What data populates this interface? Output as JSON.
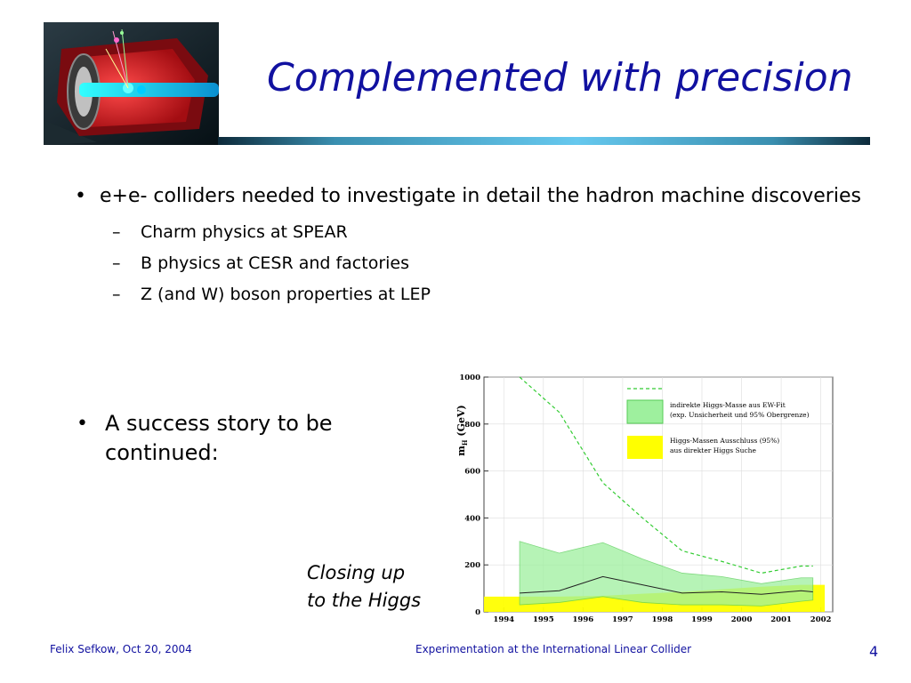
{
  "title": "Complemented with precision",
  "bullets": {
    "main": "e+e- colliders needed to investigate in detail the hadron machine discoveries",
    "sub": [
      "Charm physics at SPEAR",
      "B physics at CESR and factories",
      "Z (and W) boson properties at LEP"
    ],
    "second": "A success story to be continued:"
  },
  "caption_line1": "Closing up",
  "caption_line2": "to the Higgs",
  "footer": {
    "author": "Felix Sefkow, Oct 20, 2004",
    "event": "Experimentation at the International Linear Collider",
    "page": "4"
  },
  "chart_data": {
    "type": "area",
    "ylabel": "m",
    "ylabel_sub": "H",
    "ylabel_unit": "(GeV)",
    "ylim": [
      0,
      1000
    ],
    "yticks": [
      0,
      200,
      400,
      600,
      800,
      1000
    ],
    "x": [
      "1994",
      "1995",
      "1996",
      "1997",
      "1998",
      "1999",
      "2000",
      "2001",
      "2002"
    ],
    "xlim": [
      1993.5,
      2002.3
    ],
    "legend": [
      {
        "line1": "indirekte Higgs-Masse aus EW-Fit",
        "line2": "(exp. Unsicherheit und 95% Obergrenze)",
        "color": "#9ef09e"
      },
      {
        "line1": "Higgs-Massen Ausschluss (95%)",
        "line2": "aus direkter Higgs Suche",
        "color": "#ffff00"
      }
    ],
    "series": [
      {
        "role": "band_upper",
        "x": [
          1994.4,
          1995.4,
          1996.5,
          1997.5,
          1998.5,
          1999.5,
          2000.5,
          2001.5,
          2001.8
        ],
        "values": [
          300,
          250,
          295,
          225,
          165,
          150,
          120,
          145,
          145
        ]
      },
      {
        "role": "band_lower",
        "x": [
          1994.4,
          1995.4,
          1996.5,
          1997.5,
          1998.5,
          1999.5,
          2000.5,
          2001.5,
          2001.8
        ],
        "values": [
          30,
          40,
          65,
          40,
          30,
          30,
          25,
          45,
          50
        ]
      },
      {
        "role": "central",
        "x": [
          1994.4,
          1995.4,
          1996.5,
          1997.5,
          1998.5,
          1999.5,
          2000.5,
          2001.5,
          2001.8
        ],
        "values": [
          80,
          90,
          150,
          115,
          80,
          85,
          75,
          90,
          85
        ]
      },
      {
        "role": "upper_limit",
        "x": [
          1994.4,
          1995.4,
          1996.5,
          1997.5,
          1998.5,
          1999.5,
          2000.5,
          2001.5,
          2001.8
        ],
        "values": [
          1000,
          850,
          550,
          400,
          260,
          215,
          165,
          195,
          195
        ]
      },
      {
        "role": "excluded",
        "x": [
          1993.5,
          1994.4,
          1995.4,
          1996.5,
          1997.5,
          1998.5,
          1999.5,
          2000.5,
          2001.5,
          2002.1
        ],
        "values": [
          65,
          65,
          65,
          68,
          77,
          85,
          96,
          107,
          115,
          115
        ]
      }
    ]
  }
}
